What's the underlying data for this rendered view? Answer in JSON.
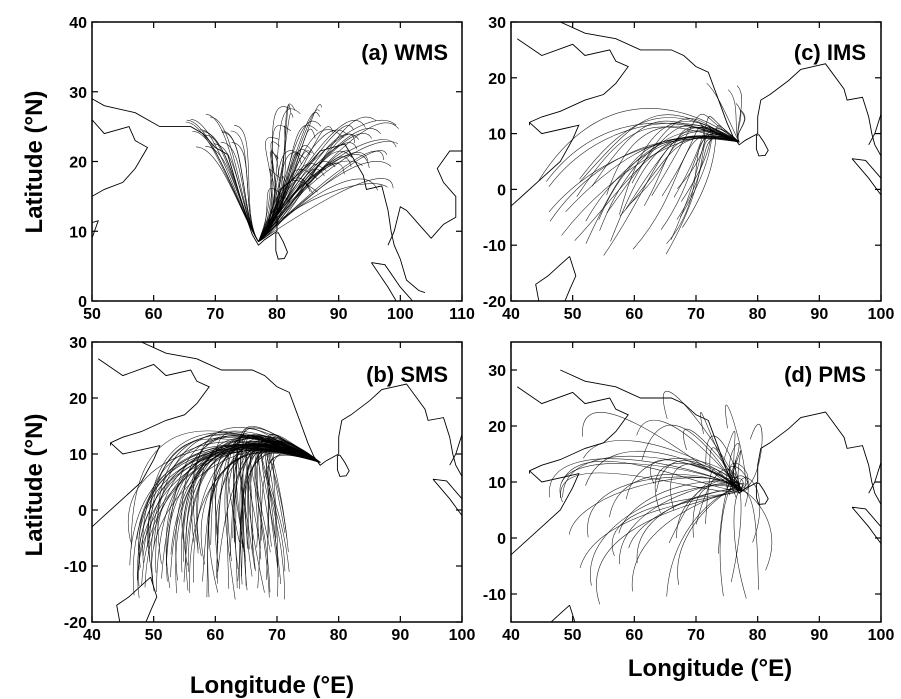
{
  "figure": {
    "xlabel": "Longitude (°E)",
    "ylabel": "Latitude (°N)"
  },
  "panels": [
    {
      "id": "a",
      "label": "(a) WMS",
      "xlim": [
        50,
        110
      ],
      "ylim": [
        0,
        40
      ],
      "xticks": [
        50,
        60,
        70,
        80,
        90,
        100,
        110
      ],
      "yticks": [
        0,
        10,
        20,
        30,
        40
      ],
      "origin": [
        77,
        8.5
      ],
      "trajectory_count": 80
    },
    {
      "id": "c",
      "label": "(c) IMS",
      "xlim": [
        40,
        100
      ],
      "ylim": [
        -20,
        30
      ],
      "xticks": [
        40,
        50,
        60,
        70,
        80,
        90,
        100
      ],
      "yticks": [
        -20,
        -10,
        0,
        10,
        20,
        30
      ],
      "origin": [
        77,
        8.5
      ],
      "trajectory_count": 45
    },
    {
      "id": "b",
      "label": "(b) SMS",
      "xlim": [
        40,
        100
      ],
      "ylim": [
        -20,
        30
      ],
      "xticks": [
        40,
        50,
        60,
        70,
        80,
        90,
        100
      ],
      "yticks": [
        -20,
        -10,
        0,
        10,
        20,
        30
      ],
      "origin": [
        77,
        8.5
      ],
      "trajectory_count": 110
    },
    {
      "id": "d",
      "label": "(d) PMS",
      "xlim": [
        40,
        100
      ],
      "ylim": [
        -15,
        35
      ],
      "xticks": [
        40,
        50,
        60,
        70,
        80,
        90,
        100
      ],
      "yticks": [
        -10,
        0,
        10,
        20,
        30
      ],
      "origin": [
        77,
        8.5
      ],
      "trajectory_count": 55
    }
  ]
}
